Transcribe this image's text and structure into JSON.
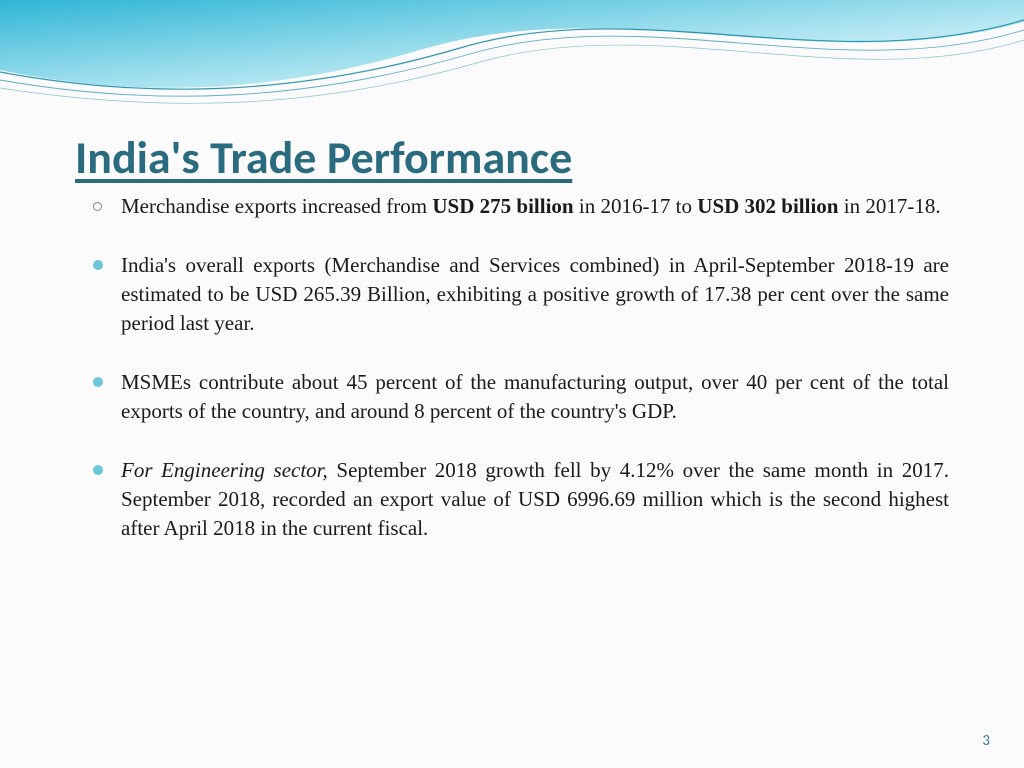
{
  "title": "India's Trade Performance",
  "title_color": "#2a6b80",
  "title_fontsize": 46,
  "body_fontsize": 21,
  "body_color": "#1a1a1a",
  "bullet_color": "#6cc5d8",
  "background_color": "#fdfdfd",
  "wave": {
    "fill_start": "#2fb6d6",
    "fill_end": "#b9e8f2",
    "line_colors": [
      "#1a8ca6",
      "#1a8ca6",
      "#1a8ca6"
    ]
  },
  "bullets": [
    {
      "style": "hollow",
      "segments": [
        {
          "t": " Merchandise exports increased from "
        },
        {
          "t": "USD 275 billion",
          "b": true
        },
        {
          "t": " in 2016-17 to "
        },
        {
          "t": "USD 302 billion",
          "b": true
        },
        {
          "t": " in 2017-18."
        }
      ]
    },
    {
      "style": "solid",
      "segments": [
        {
          "t": "India's overall exports (Merchandise and Services combined) in April-September 2018-19 are estimated to be USD 265.39 Billion, exhibiting a positive growth of 17.38 per cent over the same period last year."
        }
      ]
    },
    {
      "style": "solid",
      "segments": [
        {
          "t": "MSMEs contribute about 45 percent of the manufacturing output, over 40 per cent of the total exports of the country, and around 8 percent of the country's GDP."
        }
      ]
    },
    {
      "style": "solid",
      "segments": [
        {
          "t": "For Engineering sector,",
          "i": true
        },
        {
          "t": " September 2018 growth fell by 4.12% over the same month in 2017. September 2018, recorded an export value of USD 6996.69 million which is the second highest after April 2018 in the current fiscal."
        }
      ]
    }
  ],
  "page_number": "3",
  "page_number_color": "#3a7f94"
}
